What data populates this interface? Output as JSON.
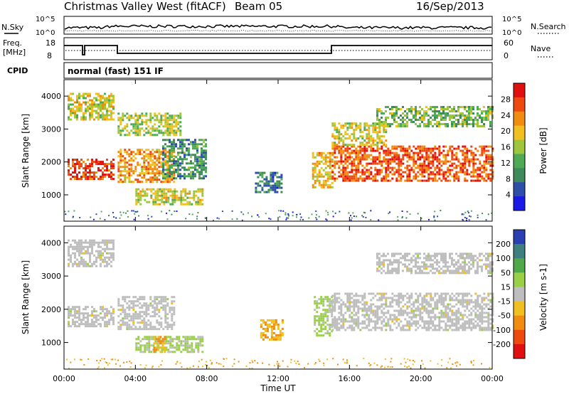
{
  "header": {
    "station": "Christmas Valley West (fitACF)",
    "beam": "Beam 05",
    "date": "16/Sep/2013"
  },
  "noise_panel": {
    "left_label": "N.Sky",
    "right_label": "N.Search",
    "left_ticks": [
      "10^5",
      "10^0"
    ],
    "right_ticks": [
      "10^5",
      "10^0"
    ]
  },
  "freq_panel": {
    "left_label_1": "Freq.",
    "left_label_2": "[MHz]",
    "right_label": "Nave",
    "left_ticks": [
      "18",
      "8"
    ],
    "right_ticks": [
      "60",
      "0"
    ]
  },
  "cpid_panel": {
    "label": "CPID",
    "mode": "normal (fast) 151 IF"
  },
  "colors": {
    "power": [
      "#1a1ae6",
      "#2e4fa8",
      "#3f8a5a",
      "#4faa55",
      "#9ec63c",
      "#f0c020",
      "#f08c10",
      "#ee4a10",
      "#e01010"
    ],
    "velocity": [
      "#e01010",
      "#ee4a10",
      "#f08c10",
      "#f0c020",
      "#bebebe",
      "#9ad048",
      "#4fa84a",
      "#3f7f7f",
      "#2a3fb0"
    ]
  },
  "chart_data": [
    {
      "type": "heatmap",
      "ylabel": "Slant Range [km]",
      "ylim": [
        200,
        4500
      ],
      "y_ticks": [
        "1000",
        "2000",
        "3000",
        "4000"
      ],
      "colorbar": {
        "label": "Power [dB]",
        "range": [
          0,
          32
        ],
        "ticks": [
          "4",
          "8",
          "12",
          "16",
          "20",
          "24",
          "28"
        ]
      },
      "regions": [
        {
          "t0": 0.2,
          "t1": 2.8,
          "r0": 1500,
          "r1": 2100,
          "v": 27
        },
        {
          "t0": 0.2,
          "t1": 2.8,
          "r0": 3300,
          "r1": 4100,
          "v": 18
        },
        {
          "t0": 3.0,
          "t1": 6.2,
          "r0": 1400,
          "r1": 2400,
          "v": 22
        },
        {
          "t0": 3.0,
          "t1": 6.5,
          "r0": 2800,
          "r1": 3500,
          "v": 16
        },
        {
          "t0": 4.0,
          "t1": 7.8,
          "r0": 700,
          "r1": 1200,
          "v": 18
        },
        {
          "t0": 5.5,
          "t1": 8.0,
          "r0": 1500,
          "r1": 2700,
          "v": 10
        },
        {
          "t0": 10.7,
          "t1": 12.2,
          "r0": 1100,
          "r1": 1700,
          "v": 8
        },
        {
          "t0": 13.9,
          "t1": 15.0,
          "r0": 1200,
          "r1": 2300,
          "v": 20
        },
        {
          "t0": 15.0,
          "t1": 24.0,
          "r0": 1400,
          "r1": 2500,
          "v": 26
        },
        {
          "t0": 15.0,
          "t1": 18.0,
          "r0": 2500,
          "r1": 3200,
          "v": 18
        },
        {
          "t0": 17.5,
          "t1": 24.0,
          "r0": 3100,
          "r1": 3700,
          "v": 14
        }
      ]
    },
    {
      "type": "heatmap",
      "ylabel": "Slant Range [km]",
      "ylim": [
        200,
        4500
      ],
      "y_ticks": [
        "1000",
        "2000",
        "3000",
        "4000"
      ],
      "colorbar": {
        "label": "Velocity [m s-1]",
        "range": [
          -250,
          250
        ],
        "ticks": [
          "200",
          "100",
          "50",
          "15",
          "-15",
          "-50",
          "-100",
          "-200"
        ]
      },
      "regions": [
        {
          "t0": 0.2,
          "t1": 2.8,
          "r0": 1500,
          "r1": 2100,
          "v": 0
        },
        {
          "t0": 0.2,
          "t1": 2.8,
          "r0": 3300,
          "r1": 4100,
          "v": 0
        },
        {
          "t0": 3.0,
          "t1": 6.2,
          "r0": 1400,
          "r1": 2400,
          "v": 0
        },
        {
          "t0": 4.0,
          "t1": 7.8,
          "r0": 700,
          "r1": 1200,
          "v": 40
        },
        {
          "t0": 5.0,
          "t1": 5.6,
          "r0": 700,
          "r1": 1200,
          "v": -80
        },
        {
          "t0": 11.0,
          "t1": 12.2,
          "r0": 1100,
          "r1": 1700,
          "v": -80
        },
        {
          "t0": 14.0,
          "t1": 15.0,
          "r0": 1200,
          "r1": 2400,
          "v": 40
        },
        {
          "t0": 15.0,
          "t1": 24.0,
          "r0": 1400,
          "r1": 2500,
          "v": 0
        },
        {
          "t0": 17.5,
          "t1": 24.0,
          "r0": 3100,
          "r1": 3700,
          "v": 0
        }
      ]
    }
  ],
  "x_axis": {
    "label": "Time UT",
    "ticks": [
      "00:00",
      "04:00",
      "08:00",
      "12:00",
      "16:00",
      "20:00",
      "00:00"
    ]
  }
}
